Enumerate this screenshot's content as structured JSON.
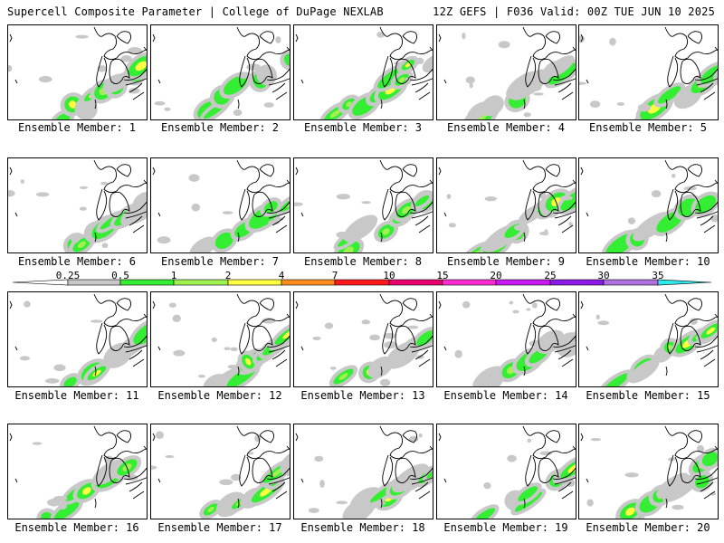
{
  "header": {
    "title": "Supercell Composite Parameter | College of DuPage NEXLAB",
    "run_info": "12Z GEFS | F036 Valid: 00Z TUE JUN 10 2025"
  },
  "panels": [
    {
      "label": "Ensemble Member: 1"
    },
    {
      "label": "Ensemble Member: 2"
    },
    {
      "label": "Ensemble Member: 3"
    },
    {
      "label": "Ensemble Member: 4"
    },
    {
      "label": "Ensemble Member: 5"
    },
    {
      "label": "Ensemble Member: 6"
    },
    {
      "label": "Ensemble Member: 7"
    },
    {
      "label": "Ensemble Member: 8"
    },
    {
      "label": "Ensemble Member: 9"
    },
    {
      "label": "Ensemble Member: 10"
    },
    {
      "label": "Ensemble Member: 11"
    },
    {
      "label": "Ensemble Member: 12"
    },
    {
      "label": "Ensemble Member: 13"
    },
    {
      "label": "Ensemble Member: 14"
    },
    {
      "label": "Ensemble Member: 15"
    },
    {
      "label": "Ensemble Member: 16"
    },
    {
      "label": "Ensemble Member: 17"
    },
    {
      "label": "Ensemble Member: 18"
    },
    {
      "label": "Ensemble Member: 19"
    },
    {
      "label": "Ensemble Member: 20"
    }
  ],
  "legend": {
    "ticks": [
      "0.25",
      "0.5",
      "1",
      "2",
      "4",
      "7",
      "10",
      "15",
      "20",
      "25",
      "30",
      "35"
    ],
    "colors": [
      "#c8c8c8",
      "#33ee33",
      "#a0f050",
      "#ffff40",
      "#ff8c1a",
      "#ff1a1a",
      "#e8006e",
      "#ff2ad0",
      "#c818f0",
      "#8c1ae6",
      "#b070e0",
      "#30e8e8"
    ]
  }
}
